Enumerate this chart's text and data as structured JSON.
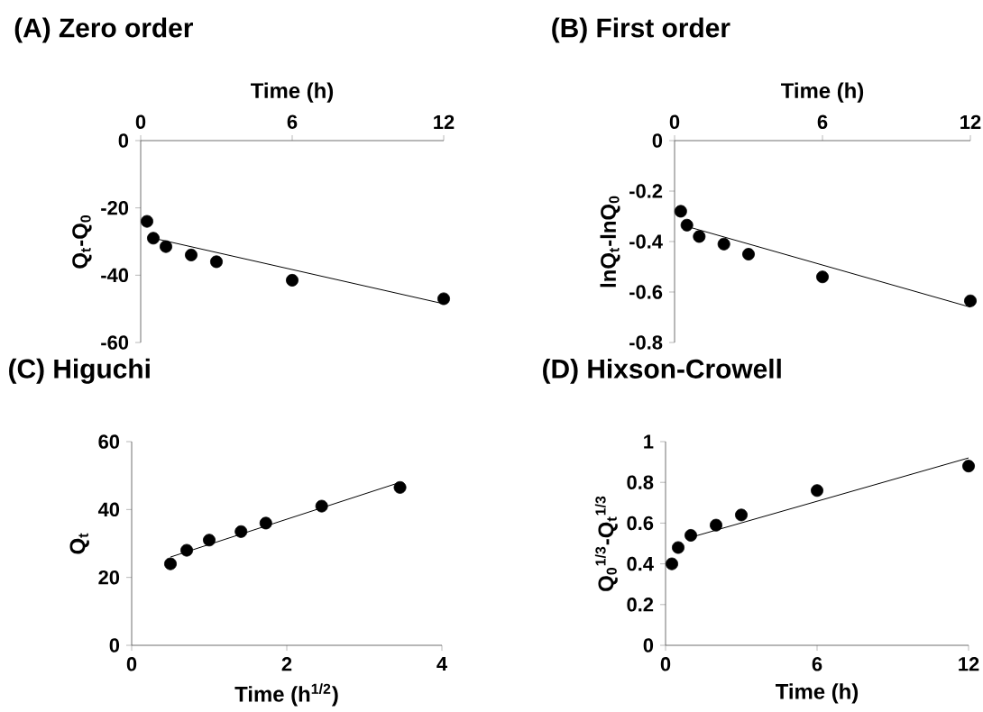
{
  "chart_data": [
    {
      "type": "scatter",
      "title": "(A) Zero order",
      "xlabel": "Time (h)",
      "ylabel": "Q$_{t}$-Q$_{0}$",
      "xlim": [
        0,
        12
      ],
      "xticks": [
        0,
        6,
        12
      ],
      "ylim": [
        -60,
        0
      ],
      "yticks": [
        -60,
        -40,
        -20,
        0
      ],
      "marker": "circle",
      "series": [
        {
          "color": "#000000",
          "x": [
            0.25,
            0.5,
            1,
            2,
            3,
            6,
            12
          ],
          "values": [
            -24,
            -29,
            -31.5,
            -34,
            -36,
            -41.5,
            -47
          ]
        },
        {
          "type": "line",
          "marker": "none",
          "color": "#000000",
          "x": [
            0.5,
            12
          ],
          "values": [
            -29,
            -48.5
          ]
        }
      ]
    },
    {
      "type": "scatter",
      "title": "(B) First order",
      "xlabel": "Time (h)",
      "ylabel": "lnQ$_{t}$-lnQ$_{0}$",
      "xlim": [
        0,
        12
      ],
      "xticks": [
        0,
        6,
        12
      ],
      "ylim": [
        -0.8,
        0
      ],
      "yticks": [
        -0.8,
        -0.6,
        -0.4,
        -0.2,
        0
      ],
      "marker": "circle",
      "series": [
        {
          "color": "#000000",
          "x": [
            0.25,
            0.5,
            1,
            2,
            3,
            6,
            12
          ],
          "values": [
            -0.28,
            -0.335,
            -0.38,
            -0.41,
            -0.45,
            -0.54,
            -0.635
          ]
        },
        {
          "type": "line",
          "marker": "none",
          "color": "#000000",
          "x": [
            0.5,
            12
          ],
          "values": [
            -0.34,
            -0.66
          ]
        }
      ]
    },
    {
      "type": "scatter",
      "title": "(C) Higuchi",
      "xlabel": "Time (h$^{1/2}$)",
      "ylabel": "Q$_{t}$",
      "xlim": [
        0,
        4
      ],
      "xticks": [
        0,
        2,
        4
      ],
      "ylim": [
        0,
        60
      ],
      "yticks": [
        0,
        20,
        40,
        60
      ],
      "marker": "circle",
      "series": [
        {
          "color": "#000000",
          "x": [
            0.5,
            0.71,
            1,
            1.41,
            1.73,
            2.45,
            3.46
          ],
          "values": [
            24,
            28,
            31,
            33.5,
            36,
            41,
            46.5
          ]
        },
        {
          "type": "line",
          "marker": "none",
          "color": "#000000",
          "x": [
            0.5,
            3.46
          ],
          "values": [
            26,
            48
          ]
        }
      ]
    },
    {
      "type": "scatter",
      "title": "(D) Hixson-Crowell",
      "xlabel": "Time (h)",
      "ylabel": "Q$_{0}$$^{1/3}$-Q$_{t}$$^{1/3}$",
      "xlim": [
        0,
        12
      ],
      "xticks": [
        0,
        6,
        12
      ],
      "ylim": [
        0,
        1
      ],
      "yticks": [
        0,
        0.2,
        0.4,
        0.6,
        0.8,
        1
      ],
      "marker": "circle",
      "series": [
        {
          "color": "#000000",
          "x": [
            0.25,
            0.5,
            1,
            2,
            3,
            6,
            12
          ],
          "values": [
            0.4,
            0.48,
            0.54,
            0.59,
            0.64,
            0.76,
            0.88
          ]
        },
        {
          "type": "line",
          "marker": "none",
          "color": "#000000",
          "x": [
            1,
            12
          ],
          "values": [
            0.53,
            0.92
          ]
        }
      ]
    }
  ]
}
